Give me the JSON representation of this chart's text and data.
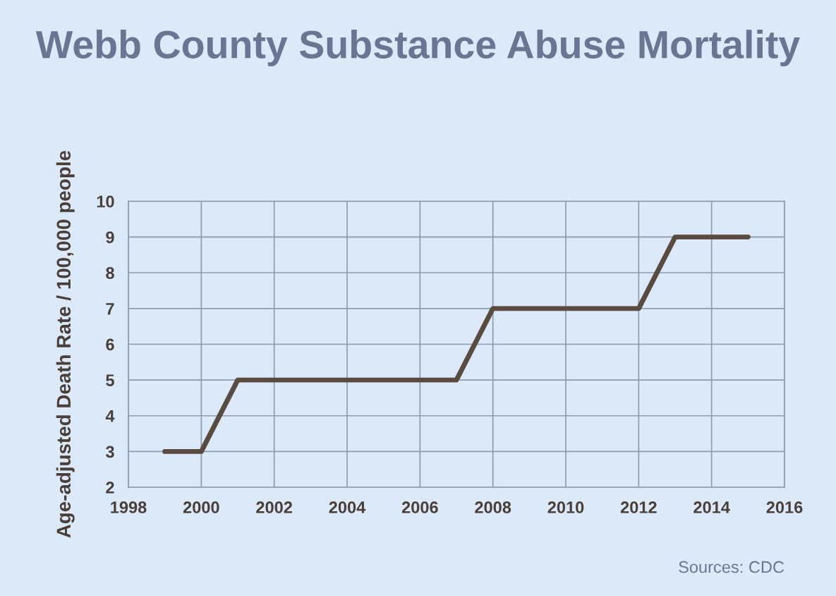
{
  "chart_data": {
    "type": "line",
    "title": "Webb County Substance Abuse Mortality",
    "ylabel": "Age-adjusted Death Rate / 100,000 people",
    "x": [
      1999,
      2000,
      2001,
      2002,
      2003,
      2004,
      2005,
      2006,
      2007,
      2008,
      2009,
      2010,
      2011,
      2012,
      2013,
      2014,
      2015
    ],
    "series": [
      {
        "color": "#5a4b41",
        "values": [
          3,
          3,
          5,
          5,
          5,
          5,
          5,
          5,
          5,
          7,
          7,
          7,
          7,
          7,
          9,
          9,
          9
        ]
      }
    ],
    "xlim": [
      1998,
      2016
    ],
    "xticks": [
      1998,
      2000,
      2002,
      2004,
      2006,
      2008,
      2010,
      2012,
      2014,
      2016
    ],
    "ylim": [
      2,
      10
    ],
    "yticks": [
      2,
      3,
      4,
      5,
      6,
      7,
      8,
      9,
      10
    ],
    "grid": true,
    "marker": "none",
    "line_style": "solid",
    "annotations": [
      "Sources: CDC"
    ]
  }
}
